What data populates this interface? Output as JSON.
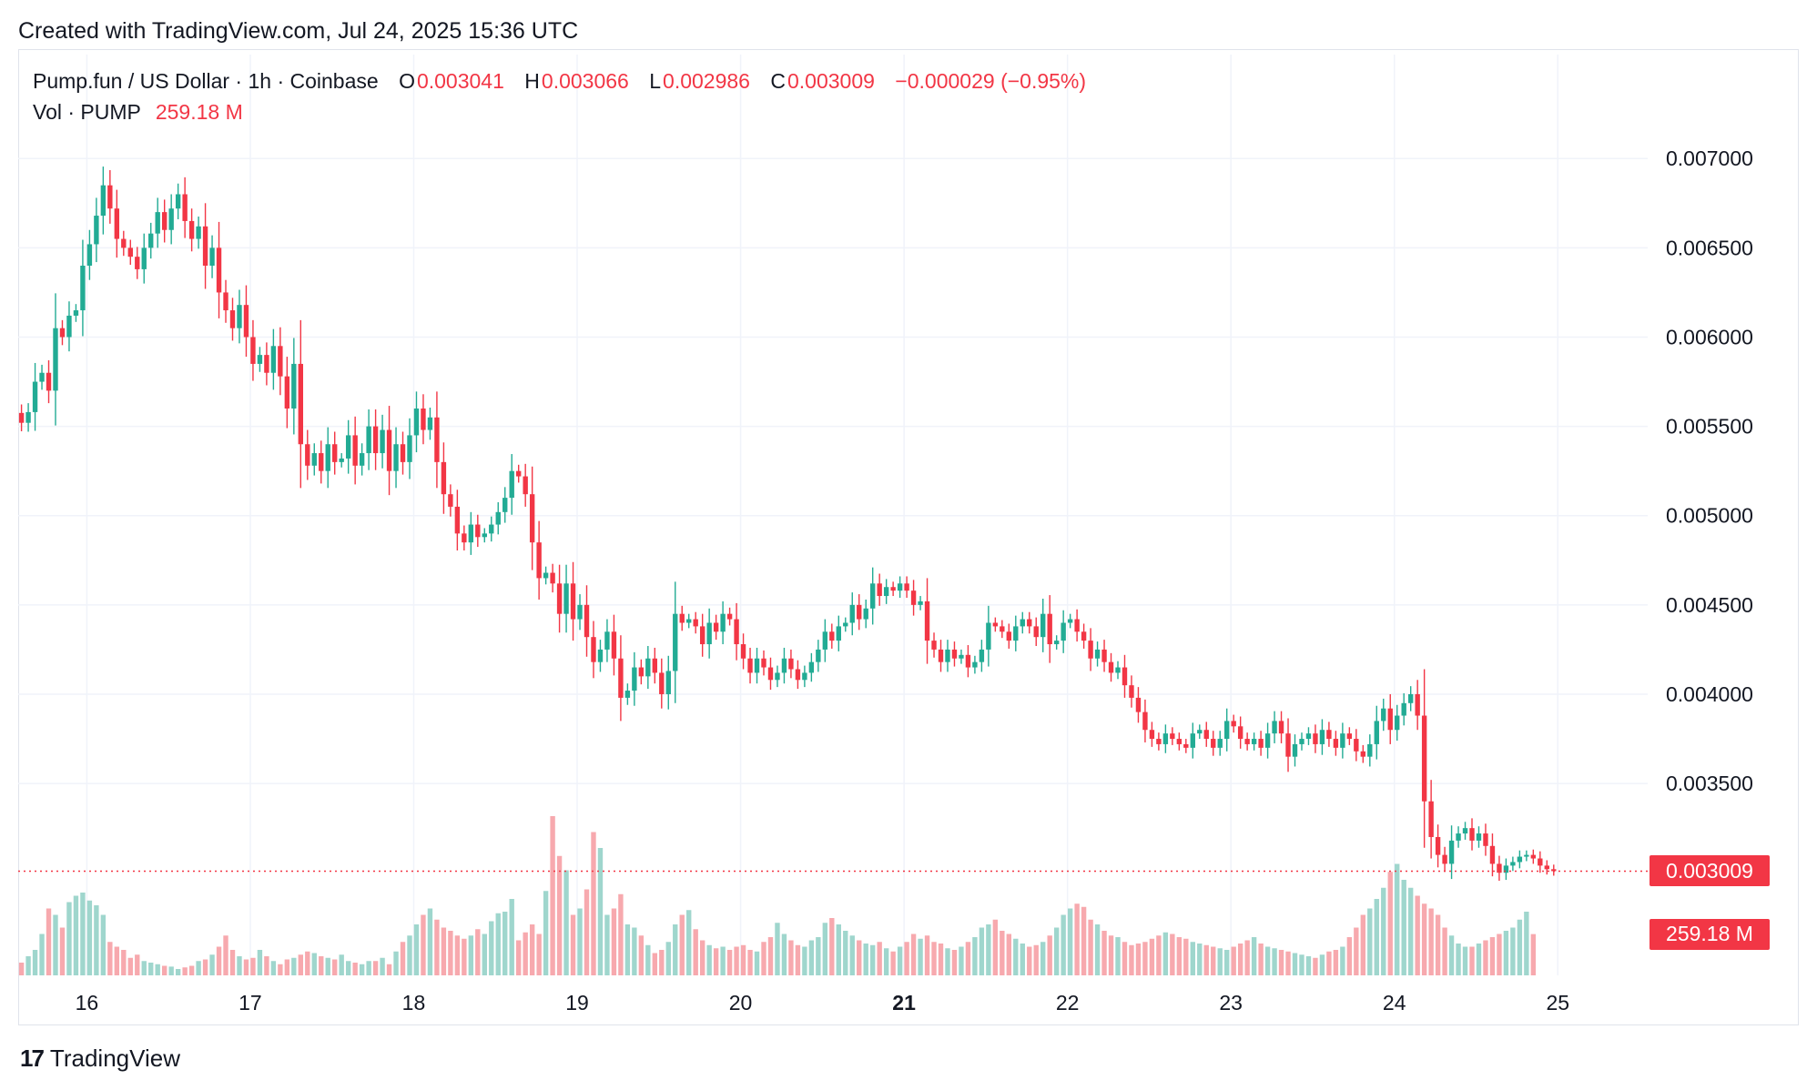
{
  "header": {
    "credit": "Created with TradingView.com, Jul 24, 2025 15:36 UTC"
  },
  "legend": {
    "symbol": "Pump.fun / US Dollar · 1h · Coinbase",
    "open_label": "O",
    "open": "0.003041",
    "high_label": "H",
    "high": "0.003066",
    "low_label": "L",
    "low": "0.002986",
    "close_label": "C",
    "close": "0.003009",
    "change": "−0.000029 (−0.95%)",
    "vol_label": "Vol · PUMP",
    "vol_value": "259.18 M"
  },
  "price_tag": "0.003009",
  "volume_tag": "259.18 M",
  "footer": {
    "logo_text": "TradingView",
    "logo_mark": "17"
  },
  "colors": {
    "up": "#22ab94",
    "down": "#f23645",
    "vol_up": "#9fd6cd",
    "vol_down": "#f7a9ae",
    "grid": "#f0f3fa"
  },
  "chart_data": {
    "type": "candlestick",
    "interval": "1h",
    "x_tick_labels": [
      "16",
      "17",
      "18",
      "19",
      "20",
      "21",
      "22",
      "23",
      "24",
      "25"
    ],
    "x_ticks_days": [
      16,
      17,
      18,
      19,
      20,
      21,
      22,
      23,
      24,
      25
    ],
    "bold_x_tick": "21",
    "y_tick_labels": [
      "0.007000",
      "0.006500",
      "0.006000",
      "0.005500",
      "0.005000",
      "0.004500",
      "0.004000",
      "0.003500"
    ],
    "y_ticks": [
      0.007,
      0.0065,
      0.006,
      0.0055,
      0.005,
      0.0045,
      0.004,
      0.0035
    ],
    "ylim": [
      0.00294,
      0.0072
    ],
    "xlim_days": [
      15.58,
      25.55
    ],
    "last_price": 0.003009,
    "series": [
      {
        "name": "Pump.fun / US Dollar",
        "first_day": 15.6,
        "step_days": 0.041667,
        "close": [
          0.00552,
          0.00558,
          0.00575,
          0.0058,
          0.0057,
          0.00605,
          0.006,
          0.00612,
          0.00615,
          0.0064,
          0.00652,
          0.00668,
          0.00685,
          0.00672,
          0.00655,
          0.0065,
          0.00645,
          0.00638,
          0.0065,
          0.00658,
          0.0067,
          0.0066,
          0.00672,
          0.0068,
          0.00665,
          0.00655,
          0.00662,
          0.0064,
          0.0065,
          0.00625,
          0.00615,
          0.00605,
          0.00618,
          0.006,
          0.00585,
          0.0059,
          0.0058,
          0.00595,
          0.00578,
          0.0056,
          0.00585,
          0.0054,
          0.00528,
          0.00535,
          0.00525,
          0.0054,
          0.0053,
          0.00532,
          0.00545,
          0.00528,
          0.00535,
          0.0055,
          0.00535,
          0.00548,
          0.00525,
          0.0054,
          0.0053,
          0.00545,
          0.0056,
          0.00548,
          0.00555,
          0.0053,
          0.00512,
          0.00505,
          0.0049,
          0.00485,
          0.00495,
          0.00488,
          0.0049,
          0.00495,
          0.00502,
          0.0051,
          0.00525,
          0.00522,
          0.00512,
          0.00485,
          0.00465,
          0.00468,
          0.00462,
          0.00445,
          0.00462,
          0.00442,
          0.0045,
          0.00432,
          0.00418,
          0.00425,
          0.00435,
          0.0042,
          0.00398,
          0.00402,
          0.00415,
          0.0041,
          0.0042,
          0.00412,
          0.004,
          0.00413,
          0.00445,
          0.0044,
          0.00442,
          0.00438,
          0.00428,
          0.0044,
          0.00435,
          0.00445,
          0.00442,
          0.00428,
          0.0042,
          0.00412,
          0.0042,
          0.00415,
          0.00408,
          0.00412,
          0.0042,
          0.00414,
          0.00408,
          0.00412,
          0.00418,
          0.00425,
          0.00435,
          0.0043,
          0.00438,
          0.0044,
          0.0045,
          0.00442,
          0.00448,
          0.00462,
          0.00455,
          0.0046,
          0.00458,
          0.00462,
          0.00458,
          0.0045,
          0.00452,
          0.0043,
          0.00425,
          0.00418,
          0.00425,
          0.0042,
          0.00422,
          0.00415,
          0.00418,
          0.00425,
          0.0044,
          0.00438,
          0.00435,
          0.0043,
          0.00438,
          0.00442,
          0.00438,
          0.00432,
          0.00445,
          0.00428,
          0.0043,
          0.0044,
          0.00442,
          0.00435,
          0.0043,
          0.0042,
          0.00425,
          0.00418,
          0.00412,
          0.00415,
          0.00405,
          0.00398,
          0.0039,
          0.0038,
          0.00375,
          0.00372,
          0.00378,
          0.00375,
          0.00372,
          0.0037,
          0.00378,
          0.0038,
          0.00375,
          0.0037,
          0.00375,
          0.00385,
          0.00382,
          0.00375,
          0.00372,
          0.00375,
          0.0037,
          0.00378,
          0.00385,
          0.00378,
          0.00365,
          0.00372,
          0.00375,
          0.00378,
          0.00372,
          0.0038,
          0.00375,
          0.0037,
          0.00378,
          0.00375,
          0.00368,
          0.00365,
          0.00372,
          0.00385,
          0.00392,
          0.0038,
          0.00388,
          0.00395,
          0.004,
          0.00388,
          0.0034,
          0.0032,
          0.0031,
          0.00305,
          0.00318,
          0.00322,
          0.00325,
          0.00318,
          0.00322,
          0.00315,
          0.00305,
          0.003,
          0.00304,
          0.00306,
          0.00309,
          0.0031,
          0.00308,
          0.00304,
          0.00302,
          0.003009
        ],
        "volume_m": [
          80,
          120,
          160,
          260,
          420,
          380,
          300,
          460,
          500,
          520,
          470,
          440,
          380,
          210,
          180,
          160,
          110,
          130,
          90,
          80,
          70,
          60,
          55,
          40,
          50,
          60,
          90,
          100,
          130,
          180,
          250,
          160,
          120,
          100,
          110,
          160,
          120,
          90,
          70,
          100,
          110,
          130,
          150,
          140,
          120,
          110,
          100,
          130,
          90,
          80,
          70,
          90,
          90,
          110,
          70,
          150,
          210,
          250,
          320,
          380,
          420,
          350,
          300,
          280,
          250,
          230,
          250,
          290,
          260,
          340,
          390,
          400,
          480,
          220,
          270,
          320,
          260,
          530,
          1000,
          750,
          660,
          380,
          420,
          540,
          900,
          800,
          380,
          420,
          510,
          320,
          300,
          250,
          190,
          140,
          160,
          210,
          320,
          380,
          410,
          290,
          220,
          190,
          170,
          180,
          160,
          180,
          190,
          160,
          150,
          210,
          240,
          330,
          260,
          220,
          190,
          180,
          220,
          240,
          330,
          360,
          320,
          280,
          250,
          220,
          200,
          190,
          210,
          170,
          150,
          180,
          210,
          260,
          230,
          250,
          210,
          200,
          170,
          160,
          180,
          210,
          240,
          300,
          320,
          350,
          280,
          260,
          230,
          200,
          180,
          190,
          210,
          250,
          300,
          380,
          420,
          450,
          430,
          350,
          320,
          280,
          250,
          240,
          210,
          190,
          200,
          210,
          230,
          250,
          270,
          260,
          240,
          230,
          210,
          200,
          190,
          180,
          170,
          160,
          180,
          200,
          220,
          240,
          200,
          180,
          170,
          160,
          150,
          140,
          130,
          120,
          110,
          130,
          150,
          160,
          180,
          240,
          300,
          380,
          420,
          480,
          550,
          650,
          700,
          600,
          550,
          500,
          450,
          420,
          380,
          300,
          250,
          200,
          180,
          180,
          200,
          220,
          240,
          260,
          280,
          300,
          350,
          400,
          259.18
        ]
      }
    ]
  }
}
